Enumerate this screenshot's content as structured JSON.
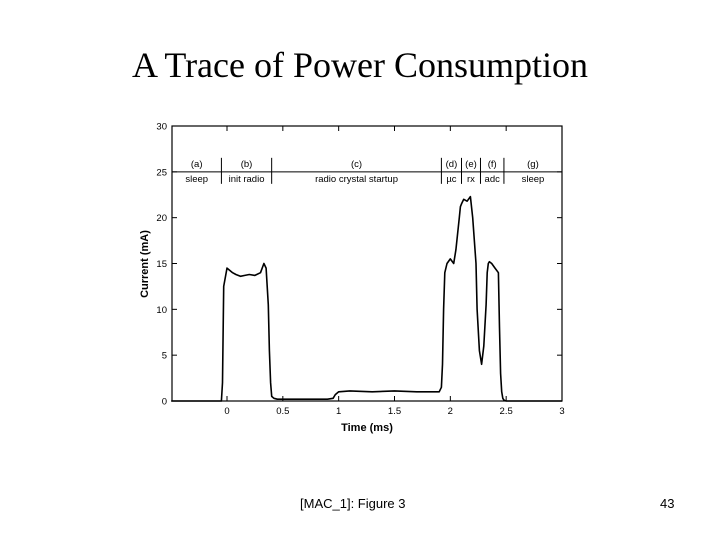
{
  "slide": {
    "title": "A Trace of Power Consumption",
    "caption": "[MAC_1]: Figure 3",
    "page_number": "43"
  },
  "chart_data": {
    "type": "line",
    "title": "",
    "xlabel": "Time (ms)",
    "ylabel": "Current (mA)",
    "xlim": [
      -0.5,
      3
    ],
    "ylim": [
      0,
      30
    ],
    "x_ticks": [
      0,
      0.5,
      1,
      1.5,
      2,
      2.5,
      3
    ],
    "x_tick_labels": [
      "0",
      "0.5",
      "1",
      "1.5",
      "2",
      "2.5",
      "3"
    ],
    "y_ticks": [
      0,
      5,
      10,
      15,
      20,
      25,
      30
    ],
    "y_tick_labels": [
      "0",
      "5",
      "10",
      "15",
      "20",
      "25",
      "30"
    ],
    "grid": false,
    "phase_row_y": 25,
    "phases": [
      {
        "letter": "(a)",
        "name": "sleep",
        "start": -0.5,
        "end": -0.05
      },
      {
        "letter": "(b)",
        "name": "init radio",
        "start": -0.05,
        "end": 0.4
      },
      {
        "letter": "(c)",
        "name": "radio crystal startup",
        "start": 0.4,
        "end": 1.92
      },
      {
        "letter": "(d)",
        "name": "µc",
        "start": 1.92,
        "end": 2.1
      },
      {
        "letter": "(e)",
        "name": "rx",
        "start": 2.1,
        "end": 2.27
      },
      {
        "letter": "(f)",
        "name": "adc",
        "start": 2.27,
        "end": 2.48
      },
      {
        "letter": "(g)",
        "name": "sleep",
        "start": 2.48,
        "end": 3.0
      }
    ],
    "series": [
      {
        "x": [
          -0.5,
          -0.05,
          -0.04,
          -0.03,
          0.0,
          0.05,
          0.08,
          0.12,
          0.16,
          0.2,
          0.25,
          0.3,
          0.33,
          0.35,
          0.37,
          0.38,
          0.39,
          0.4,
          0.42,
          0.45,
          0.55,
          0.7,
          0.9,
          0.95,
          0.97,
          1.0,
          1.1,
          1.3,
          1.5,
          1.7,
          1.9,
          1.92,
          1.93,
          1.94,
          1.95,
          1.97,
          2.0,
          2.03,
          2.05,
          2.08,
          2.09,
          2.1,
          2.12,
          2.15,
          2.18,
          2.2,
          2.23,
          2.24,
          2.26,
          2.28,
          2.3,
          2.32,
          2.33,
          2.34,
          2.35,
          2.37,
          2.4,
          2.43,
          2.44,
          2.45,
          2.46,
          2.47,
          2.48,
          2.5,
          2.55,
          2.6,
          2.8,
          3.0
        ],
        "y": [
          0.0,
          0.0,
          2.0,
          12.5,
          14.5,
          14.0,
          13.8,
          13.6,
          13.7,
          13.8,
          13.7,
          14.0,
          15.0,
          14.5,
          10.5,
          5.5,
          2.0,
          0.5,
          0.3,
          0.2,
          0.2,
          0.2,
          0.2,
          0.3,
          0.7,
          1.0,
          1.1,
          1.0,
          1.1,
          1.0,
          1.0,
          1.5,
          4.0,
          10.0,
          14.0,
          15.0,
          15.5,
          15.0,
          16.5,
          20.0,
          21.2,
          21.5,
          22.0,
          21.8,
          22.3,
          20.0,
          15.0,
          10.0,
          5.5,
          4.0,
          6.0,
          10.5,
          14.0,
          15.0,
          15.2,
          15.0,
          14.5,
          14.0,
          8.0,
          3.0,
          1.0,
          0.3,
          0.1,
          0.0,
          0.0,
          0.0,
          0.0,
          0.0
        ]
      }
    ]
  }
}
